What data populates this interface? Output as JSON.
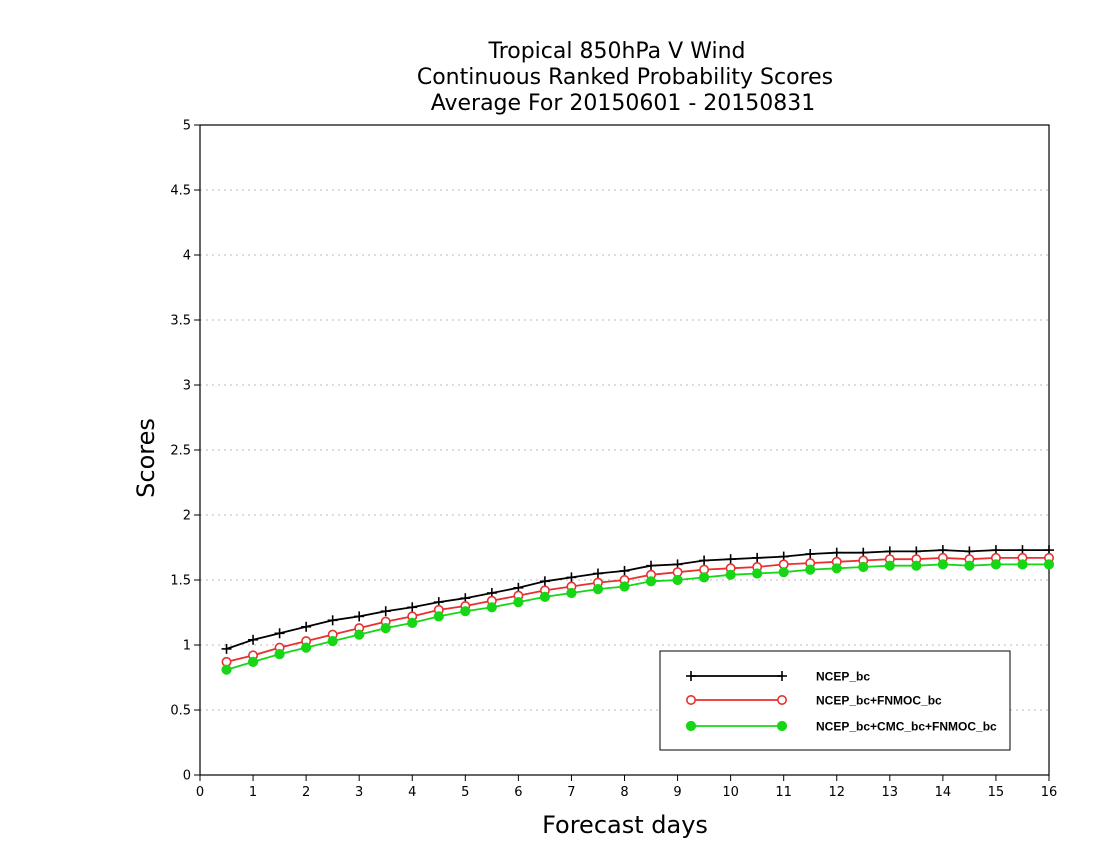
{
  "chart_data": {
    "type": "line",
    "title": [
      "Tropical 850hPa V Wind",
      "Continuous Ranked Probability Scores",
      "Average For 20150601 - 20150831"
    ],
    "xlabel": "Forecast days",
    "ylabel": "Scores",
    "xlim": [
      0,
      16
    ],
    "ylim": [
      0,
      5
    ],
    "xticks": [
      "0",
      "1",
      "2",
      "3",
      "4",
      "5",
      "6",
      "7",
      "8",
      "9",
      "10",
      "11",
      "12",
      "13",
      "14",
      "15",
      "16"
    ],
    "yticks": [
      "0",
      "0.5",
      "1",
      "1.5",
      "2",
      "2.5",
      "3",
      "3.5",
      "4",
      "4.5",
      "5"
    ],
    "ygrid": true,
    "legend_position": "bottom-right",
    "x": [
      0.5,
      1,
      1.5,
      2,
      2.5,
      3,
      3.5,
      4,
      4.5,
      5,
      5.5,
      6,
      6.5,
      7,
      7.5,
      8,
      8.5,
      9,
      9.5,
      10,
      10.5,
      11,
      11.5,
      12,
      12.5,
      13,
      13.5,
      14,
      14.5,
      15,
      15.5,
      16
    ],
    "series": [
      {
        "name": "NCEP_bc",
        "color": "#000000",
        "marker": "plus",
        "values": [
          0.97,
          1.04,
          1.09,
          1.14,
          1.19,
          1.22,
          1.26,
          1.29,
          1.33,
          1.36,
          1.4,
          1.44,
          1.49,
          1.52,
          1.55,
          1.57,
          1.61,
          1.62,
          1.65,
          1.66,
          1.67,
          1.68,
          1.7,
          1.71,
          1.71,
          1.72,
          1.72,
          1.73,
          1.72,
          1.73,
          1.73,
          1.73
        ]
      },
      {
        "name": "NCEP_bc+FNMOC_bc",
        "color": "#e8302e",
        "marker": "open-circle",
        "values": [
          0.87,
          0.92,
          0.98,
          1.03,
          1.08,
          1.13,
          1.18,
          1.22,
          1.27,
          1.3,
          1.34,
          1.38,
          1.42,
          1.45,
          1.48,
          1.5,
          1.54,
          1.56,
          1.58,
          1.59,
          1.6,
          1.62,
          1.63,
          1.64,
          1.65,
          1.66,
          1.66,
          1.67,
          1.66,
          1.67,
          1.67,
          1.67
        ]
      },
      {
        "name": "NCEP_bc+CMC_bc+FNMOC_bc",
        "color": "#16d616",
        "marker": "filled-circle",
        "values": [
          0.81,
          0.87,
          0.93,
          0.98,
          1.03,
          1.08,
          1.13,
          1.17,
          1.22,
          1.26,
          1.29,
          1.33,
          1.37,
          1.4,
          1.43,
          1.45,
          1.49,
          1.5,
          1.52,
          1.54,
          1.55,
          1.56,
          1.58,
          1.59,
          1.6,
          1.61,
          1.61,
          1.62,
          1.61,
          1.62,
          1.62,
          1.62
        ]
      }
    ]
  }
}
